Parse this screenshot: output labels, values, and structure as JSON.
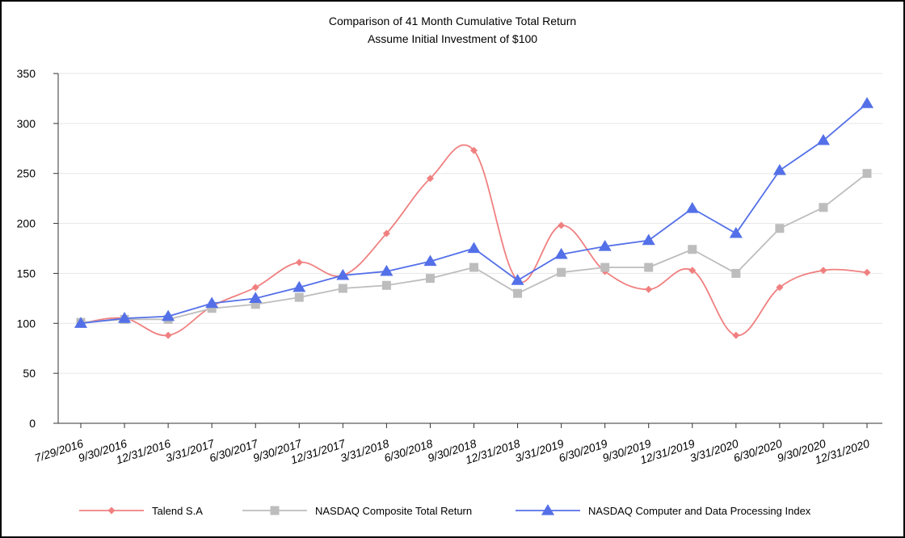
{
  "chart_data": {
    "type": "line",
    "title": "Comparison of 41 Month Cumulative Total Return",
    "subtitle": "Assume Initial Investment of $100",
    "xlabel": "",
    "ylabel": "",
    "ylim": [
      0,
      350
    ],
    "yticks": [
      0,
      50,
      100,
      150,
      200,
      250,
      300,
      350
    ],
    "grid": true,
    "legend_placement": "bottom",
    "categories": [
      "7/29/2016",
      "9/30/2016",
      "12/31/2016",
      "3/31/2017",
      "6/30/2017",
      "9/30/2017",
      "12/31/2017",
      "3/31/2018",
      "6/30/2018",
      "9/30/2018",
      "12/31/2018",
      "3/31/2019",
      "6/30/2019",
      "9/30/2019",
      "12/31/2019",
      "3/31/2020",
      "6/30/2020",
      "9/30/2020",
      "12/31/2020"
    ],
    "series": [
      {
        "name": "Talend S.A",
        "color": "#f08080",
        "marker": "diamond",
        "smooth": true,
        "values": [
          100,
          105,
          88,
          117,
          136,
          161,
          148,
          190,
          245,
          273,
          143,
          198,
          152,
          134,
          153,
          88,
          136,
          153,
          151
        ]
      },
      {
        "name": "NASDAQ Composite Total Return",
        "color": "#bdbdbd",
        "marker": "square",
        "smooth": false,
        "values": [
          101,
          104,
          104,
          115,
          119,
          126,
          135,
          138,
          145,
          156,
          130,
          151,
          156,
          156,
          174,
          150,
          195,
          216,
          250
        ]
      },
      {
        "name": "NASDAQ Computer and Data Processing Index",
        "color": "#5470e8",
        "marker": "triangle",
        "smooth": false,
        "values": [
          100,
          105,
          107,
          120,
          125,
          136,
          148,
          152,
          162,
          175,
          143,
          169,
          177,
          183,
          215,
          190,
          253,
          283,
          320
        ]
      }
    ]
  }
}
